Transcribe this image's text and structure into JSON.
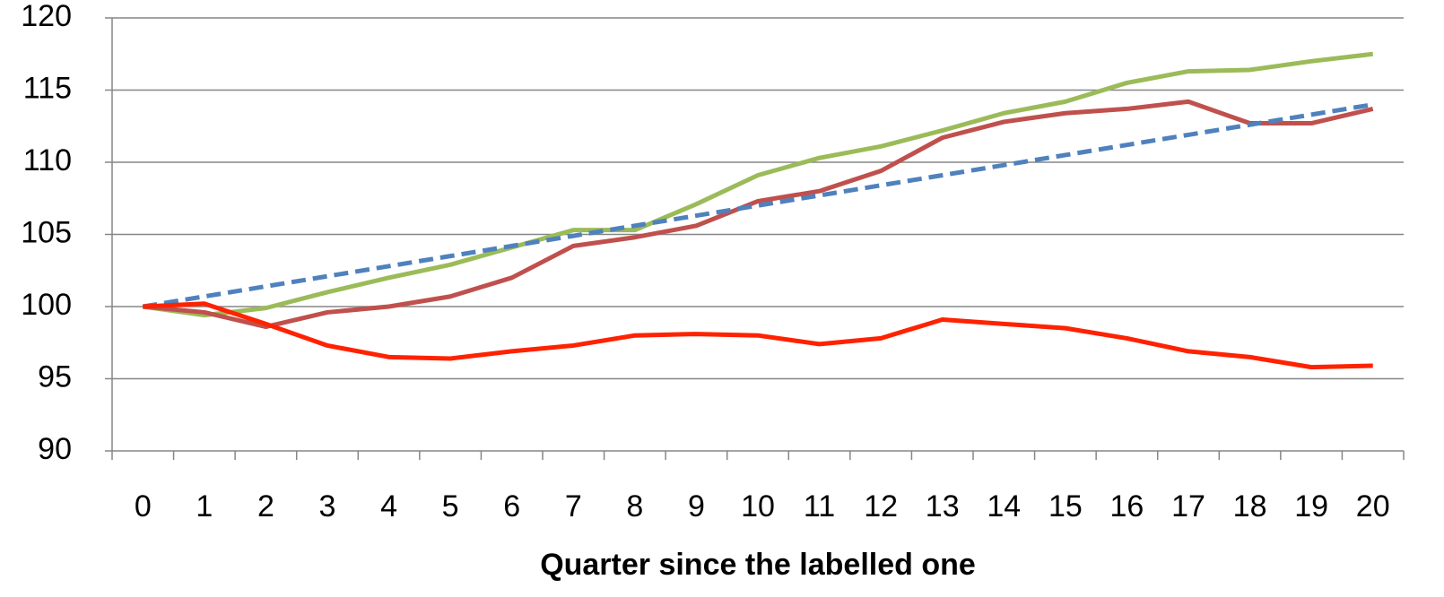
{
  "chart_data": {
    "type": "line",
    "x_label": "Quarter since the labelled one",
    "categories": [
      "0",
      "1",
      "2",
      "3",
      "4",
      "5",
      "6",
      "7",
      "8",
      "9",
      "10",
      "11",
      "12",
      "13",
      "14",
      "15",
      "16",
      "17",
      "18",
      "19",
      "20"
    ],
    "series": [
      {
        "color": "#9bbb59",
        "values": [
          100,
          99.4,
          99.9,
          101,
          102,
          102.9,
          104.1,
          105.3,
          105.3,
          107.1,
          109.1,
          110.3,
          111.1,
          112.2,
          113.4,
          114.2,
          115.5,
          116.3,
          116.4,
          117,
          117.5
        ]
      },
      {
        "color": "#c0504d",
        "values": [
          100,
          99.6,
          98.6,
          99.6,
          100,
          100.7,
          102,
          104.2,
          104.8,
          105.6,
          107.3,
          108,
          109.4,
          111.7,
          112.8,
          113.4,
          113.7,
          114.2,
          112.7,
          112.7,
          113.7
        ]
      },
      {
        "color": "#4f81bd",
        "dashed": true,
        "values": [
          100,
          100.7,
          101.4,
          102.1,
          102.8,
          103.5,
          104.2,
          104.9,
          105.6,
          106.3,
          107,
          107.7,
          108.4,
          109.1,
          109.8,
          110.5,
          111.2,
          111.9,
          112.6,
          113.3,
          114
        ]
      },
      {
        "color": "#ff2200",
        "values": [
          100,
          100.2,
          98.8,
          97.3,
          96.5,
          96.4,
          96.9,
          97.3,
          98,
          98.1,
          98,
          97.4,
          97.8,
          99.1,
          98.8,
          98.5,
          97.8,
          96.9,
          96.5,
          95.8,
          95.9
        ]
      }
    ],
    "ylim": [
      90,
      120
    ],
    "yticks": [
      90,
      95,
      100,
      105,
      110,
      115,
      120
    ],
    "grid": true
  }
}
